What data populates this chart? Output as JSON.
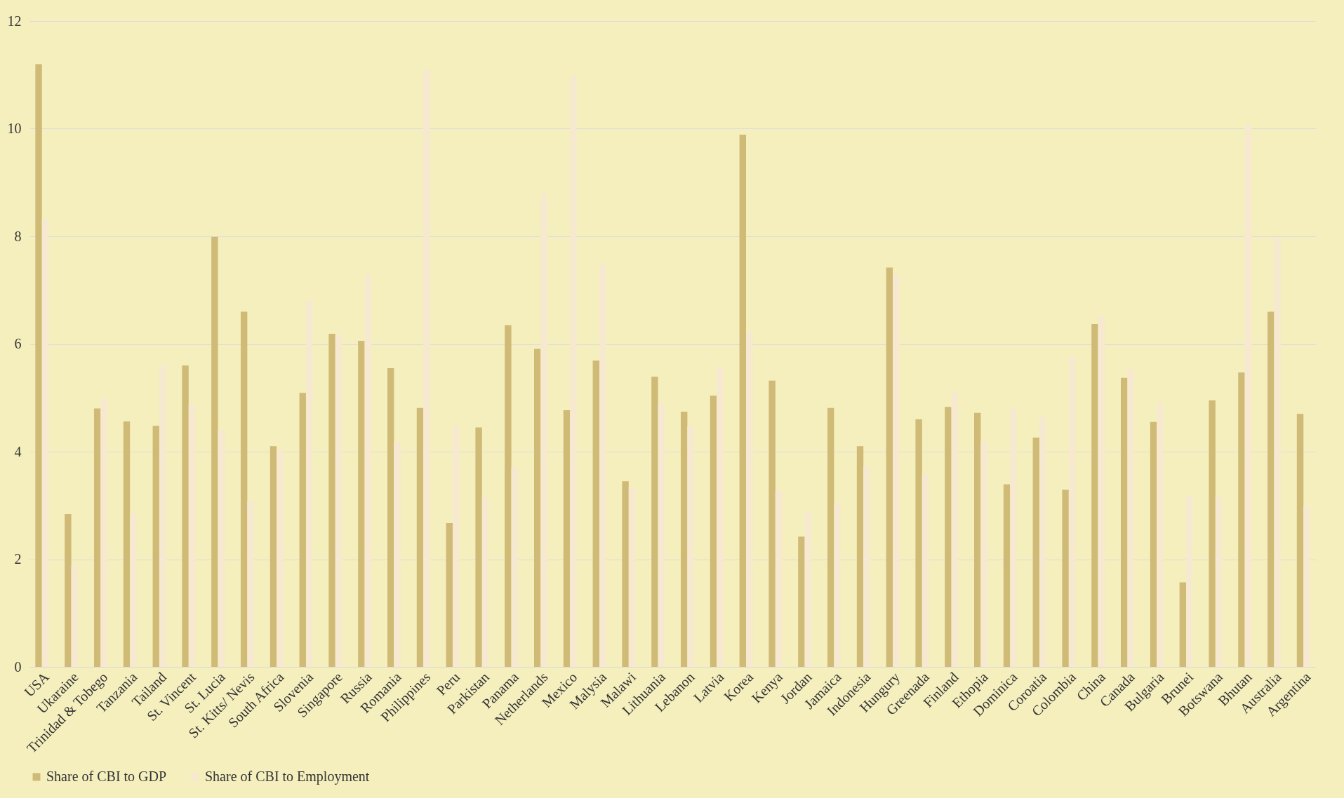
{
  "chart_data": {
    "type": "bar",
    "categories": [
      "USA",
      "Ukaraine",
      "Trinidad & Tobego",
      "Tanzania",
      "Tailand",
      "St. Vincent",
      "St. Lucia",
      "St. Kitts/ Nevis",
      "South Africa",
      "Slovenia",
      "Singapore",
      "Russia",
      "Romania",
      "Philippines",
      "Peru",
      "Parkistan",
      "Panama",
      "Netherlands",
      "Mexico",
      "Malysia",
      "Malawi",
      "Lithuania",
      "Lebanon",
      "Latvia",
      "Korea",
      "Kenya",
      "Jordan",
      "Jamaica",
      "Indonesia",
      "Hungury",
      "Greenada",
      "Finland",
      "Ethopia",
      "Dominica",
      "Coroatia",
      "Colombia",
      "China",
      "Canada",
      "Bulgaria",
      "Brunei",
      "Botswana",
      "Bhutan",
      "Australia",
      "Argentina"
    ],
    "series": [
      {
        "name": "Share of CBI to GDP",
        "color": "#cfba76",
        "values": [
          11.2,
          2.84,
          4.8,
          4.56,
          4.48,
          5.6,
          7.99,
          6.6,
          4.1,
          5.09,
          6.19,
          6.06,
          5.55,
          4.81,
          2.67,
          4.45,
          6.35,
          5.91,
          4.77,
          5.69,
          3.45,
          5.39,
          4.74,
          5.04,
          9.89,
          5.32,
          2.42,
          4.81,
          4.1,
          7.42,
          4.6,
          4.83,
          4.72,
          3.39,
          4.26,
          3.29,
          6.37,
          5.37,
          4.55,
          1.57,
          4.95,
          5.47,
          6.6,
          4.7
        ]
      },
      {
        "name": "Share of CBI to Employment",
        "color": "#f7e9cf",
        "values": [
          8.33,
          1.88,
          5.0,
          2.84,
          5.61,
          4.88,
          4.39,
          3.08,
          4.03,
          6.81,
          6.17,
          7.29,
          4.19,
          11.1,
          4.48,
          3.15,
          3.71,
          8.79,
          11.0,
          7.49,
          3.33,
          4.89,
          4.48,
          5.58,
          6.23,
          3.27,
          2.88,
          3.03,
          3.73,
          7.29,
          3.59,
          5.1,
          4.19,
          4.8,
          4.64,
          5.77,
          6.51,
          5.53,
          4.89,
          3.19,
          3.15,
          10.09,
          7.98,
          2.99
        ]
      }
    ],
    "ylim": [
      0,
      12
    ],
    "yticks": [
      0,
      2,
      4,
      6,
      8,
      10,
      12
    ],
    "grid": "y",
    "legend": "bottom"
  }
}
